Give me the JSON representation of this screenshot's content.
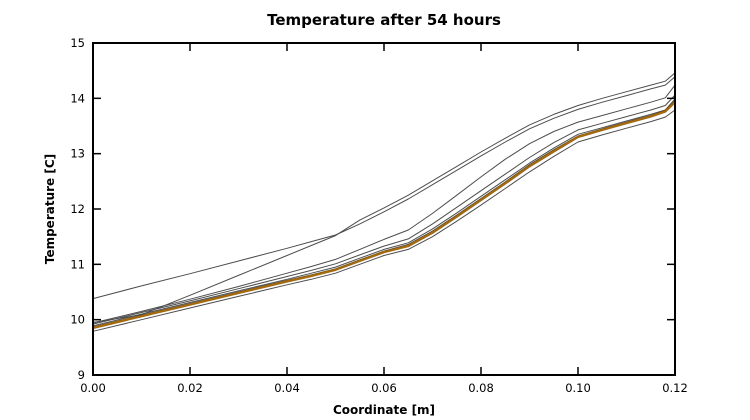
{
  "chart_data": {
    "type": "line",
    "title": "Temperature after 54 hours",
    "xlabel": "Coordinate [m]",
    "ylabel": "Temperature [C]",
    "xlim": [
      0,
      0.12
    ],
    "ylim": [
      9,
      15
    ],
    "xticks": [
      0,
      0.02,
      0.04,
      0.06,
      0.08,
      0.1,
      0.12
    ],
    "xtick_labels": [
      "0.00",
      "0.02",
      "0.04",
      "0.06",
      "0.08",
      "0.10",
      "0.12"
    ],
    "yticks": [
      9,
      10,
      11,
      12,
      13,
      14,
      15
    ],
    "ytick_labels": [
      "9",
      "10",
      "11",
      "12",
      "13",
      "14",
      "15"
    ],
    "grid": false,
    "legend_position": "none",
    "axis_color": "#000000",
    "background_color": "#ffffff",
    "gray_line_color": "#4d4d4d",
    "highlight_line_color": "#a86a08",
    "x": [
      0,
      0.01,
      0.02,
      0.03,
      0.04,
      0.045,
      0.05,
      0.055,
      0.06,
      0.065,
      0.07,
      0.075,
      0.08,
      0.085,
      0.09,
      0.095,
      0.1,
      0.105,
      0.11,
      0.115,
      0.118,
      0.12
    ],
    "series": [
      {
        "name": "gray-1",
        "color": "#4d4d4d",
        "width": 1,
        "values": [
          10.38,
          10.61,
          10.83,
          11.06,
          11.29,
          11.41,
          11.53,
          11.73,
          11.95,
          12.18,
          12.44,
          12.7,
          12.96,
          13.21,
          13.45,
          13.64,
          13.8,
          13.93,
          14.05,
          14.17,
          14.24,
          14.39
        ]
      },
      {
        "name": "gray-2",
        "color": "#4d4d4d",
        "width": 1,
        "values": [
          9.95,
          10.09,
          10.44,
          10.8,
          11.16,
          11.34,
          11.52,
          11.8,
          12.02,
          12.25,
          12.51,
          12.77,
          13.03,
          13.28,
          13.52,
          13.71,
          13.87,
          14.0,
          14.12,
          14.24,
          14.31,
          14.46
        ]
      },
      {
        "name": "gray-3",
        "color": "#4d4d4d",
        "width": 1,
        "values": [
          9.94,
          10.15,
          10.37,
          10.6,
          10.84,
          10.96,
          11.09,
          11.27,
          11.45,
          11.62,
          11.92,
          12.25,
          12.58,
          12.9,
          13.18,
          13.4,
          13.57,
          13.69,
          13.81,
          13.93,
          14.01,
          14.24
        ]
      },
      {
        "name": "gray-4",
        "color": "#4d4d4d",
        "width": 1,
        "values": [
          9.92,
          10.13,
          10.34,
          10.56,
          10.78,
          10.89,
          11.01,
          11.17,
          11.33,
          11.46,
          11.73,
          12.03,
          12.33,
          12.63,
          12.93,
          13.2,
          13.43,
          13.55,
          13.67,
          13.79,
          13.87,
          14.06
        ]
      },
      {
        "name": "gray-5",
        "color": "#4d4d4d",
        "width": 1,
        "values": [
          9.89,
          10.1,
          10.31,
          10.52,
          10.73,
          10.84,
          10.95,
          11.11,
          11.27,
          11.39,
          11.64,
          11.93,
          12.23,
          12.53,
          12.83,
          13.1,
          13.35,
          13.47,
          13.59,
          13.71,
          13.79,
          13.99
        ]
      },
      {
        "name": "gray-6",
        "color": "#4d4d4d",
        "width": 1,
        "values": [
          9.87,
          10.08,
          10.29,
          10.5,
          10.71,
          10.81,
          10.92,
          11.08,
          11.24,
          11.36,
          11.6,
          11.89,
          12.19,
          12.49,
          12.8,
          13.07,
          13.32,
          13.45,
          13.57,
          13.69,
          13.78,
          13.96
        ]
      },
      {
        "name": "gray-7",
        "color": "#4d4d4d",
        "width": 1,
        "values": [
          9.79,
          10.0,
          10.21,
          10.42,
          10.63,
          10.73,
          10.84,
          11.0,
          11.16,
          11.27,
          11.5,
          11.78,
          12.07,
          12.37,
          12.67,
          12.95,
          13.21,
          13.34,
          13.46,
          13.58,
          13.66,
          13.79
        ]
      },
      {
        "name": "orange-reference",
        "color": "#a86a08",
        "width": 2.2,
        "values": [
          9.85,
          10.06,
          10.27,
          10.48,
          10.69,
          10.79,
          10.9,
          11.06,
          11.22,
          11.33,
          11.57,
          11.86,
          12.16,
          12.46,
          12.77,
          13.04,
          13.3,
          13.43,
          13.55,
          13.67,
          13.76,
          13.93
        ]
      }
    ]
  }
}
